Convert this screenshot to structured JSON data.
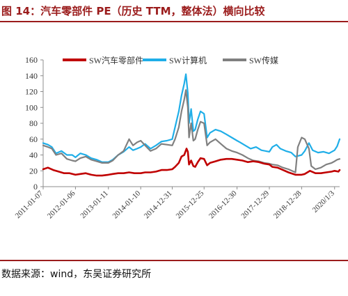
{
  "figure": {
    "title": "图 14：汽车零部件 PE（历史 TTM，整体法）横向比较",
    "source": "数据来源：wind，东吴证券研究所",
    "accent_color": "#9b1c1c"
  },
  "chart_data": {
    "type": "line",
    "title": "",
    "xlabel": "",
    "ylabel": "",
    "ylim": [
      0,
      160
    ],
    "yticks": [
      0,
      20,
      40,
      60,
      80,
      100,
      120,
      140,
      160
    ],
    "xlim": [
      "2011-01-07",
      "2020-02-29"
    ],
    "xtick_labels": [
      "2011-01-07",
      "2012-01-06",
      "2013-01-11",
      "2014-01-10",
      "2014-12-31",
      "2015-12-25",
      "2016-12-30",
      "2017-12-29",
      "2018-12-28",
      "2020/1/3"
    ],
    "grid": false,
    "legend_position": "top",
    "series": [
      {
        "name": "SW汽车零部件",
        "color": "#c00000",
        "points": [
          [
            "2011-01-07",
            22
          ],
          [
            "2011-03-01",
            24
          ],
          [
            "2011-05-01",
            21
          ],
          [
            "2011-07-01",
            19
          ],
          [
            "2011-09-01",
            17
          ],
          [
            "2011-11-01",
            17
          ],
          [
            "2012-01-06",
            15
          ],
          [
            "2012-03-01",
            16
          ],
          [
            "2012-05-01",
            17
          ],
          [
            "2012-07-01",
            15
          ],
          [
            "2012-09-01",
            14
          ],
          [
            "2012-11-01",
            14
          ],
          [
            "2013-01-11",
            15
          ],
          [
            "2013-03-01",
            16
          ],
          [
            "2013-05-01",
            17
          ],
          [
            "2013-07-01",
            17
          ],
          [
            "2013-09-01",
            18
          ],
          [
            "2013-11-01",
            17
          ],
          [
            "2014-01-10",
            17
          ],
          [
            "2014-03-01",
            18
          ],
          [
            "2014-05-01",
            18
          ],
          [
            "2014-07-01",
            19
          ],
          [
            "2014-09-01",
            21
          ],
          [
            "2014-11-01",
            21
          ],
          [
            "2014-12-31",
            22
          ],
          [
            "2015-02-01",
            25
          ],
          [
            "2015-03-15",
            30
          ],
          [
            "2015-04-15",
            38
          ],
          [
            "2015-05-15",
            40
          ],
          [
            "2015-06-10",
            48
          ],
          [
            "2015-06-25",
            44
          ],
          [
            "2015-07-08",
            28
          ],
          [
            "2015-08-01",
            33
          ],
          [
            "2015-08-26",
            26
          ],
          [
            "2015-09-15",
            25
          ],
          [
            "2015-10-15",
            31
          ],
          [
            "2015-11-15",
            36
          ],
          [
            "2015-12-25",
            35
          ],
          [
            "2016-01-28",
            27
          ],
          [
            "2016-03-01",
            30
          ],
          [
            "2016-05-01",
            32
          ],
          [
            "2016-07-01",
            34
          ],
          [
            "2016-09-01",
            35
          ],
          [
            "2016-11-01",
            35
          ],
          [
            "2016-12-30",
            34
          ],
          [
            "2017-03-01",
            33
          ],
          [
            "2017-05-01",
            31
          ],
          [
            "2017-07-01",
            32
          ],
          [
            "2017-09-01",
            31
          ],
          [
            "2017-11-01",
            29
          ],
          [
            "2017-12-29",
            28
          ],
          [
            "2018-02-01",
            25
          ],
          [
            "2018-04-01",
            24
          ],
          [
            "2018-06-01",
            21
          ],
          [
            "2018-08-01",
            18
          ],
          [
            "2018-10-19",
            15
          ],
          [
            "2018-12-28",
            15
          ],
          [
            "2019-02-01",
            16
          ],
          [
            "2019-04-01",
            20
          ],
          [
            "2019-06-01",
            17
          ],
          [
            "2019-08-01",
            17
          ],
          [
            "2019-10-01",
            18
          ],
          [
            "2019-12-01",
            19
          ],
          [
            "2020-01-03",
            20
          ],
          [
            "2020-02-15",
            19
          ],
          [
            "2020-02-29",
            21
          ]
        ]
      },
      {
        "name": "SW计算机",
        "color": "#1faee8",
        "points": [
          [
            "2011-01-07",
            55
          ],
          [
            "2011-03-01",
            53
          ],
          [
            "2011-04-15",
            50
          ],
          [
            "2011-06-01",
            42
          ],
          [
            "2011-08-01",
            45
          ],
          [
            "2011-10-01",
            40
          ],
          [
            "2011-12-01",
            40
          ],
          [
            "2012-01-06",
            37
          ],
          [
            "2012-03-01",
            42
          ],
          [
            "2012-05-01",
            40
          ],
          [
            "2012-07-01",
            36
          ],
          [
            "2012-09-01",
            34
          ],
          [
            "2012-11-01",
            31
          ],
          [
            "2013-01-11",
            31
          ],
          [
            "2013-03-01",
            34
          ],
          [
            "2013-05-01",
            40
          ],
          [
            "2013-07-01",
            44
          ],
          [
            "2013-09-01",
            50
          ],
          [
            "2013-10-15",
            46
          ],
          [
            "2013-12-01",
            48
          ],
          [
            "2014-01-10",
            50
          ],
          [
            "2014-03-01",
            54
          ],
          [
            "2014-05-01",
            48
          ],
          [
            "2014-07-01",
            52
          ],
          [
            "2014-09-01",
            57
          ],
          [
            "2014-11-01",
            58
          ],
          [
            "2014-12-31",
            60
          ],
          [
            "2015-02-01",
            75
          ],
          [
            "2015-03-15",
            95
          ],
          [
            "2015-04-15",
            115
          ],
          [
            "2015-05-15",
            130
          ],
          [
            "2015-06-03",
            142
          ],
          [
            "2015-06-25",
            118
          ],
          [
            "2015-07-08",
            80
          ],
          [
            "2015-08-01",
            98
          ],
          [
            "2015-08-26",
            70
          ],
          [
            "2015-09-15",
            72
          ],
          [
            "2015-10-15",
            85
          ],
          [
            "2015-11-15",
            95
          ],
          [
            "2015-12-25",
            92
          ],
          [
            "2016-01-28",
            62
          ],
          [
            "2016-03-01",
            68
          ],
          [
            "2016-05-01",
            72
          ],
          [
            "2016-07-01",
            70
          ],
          [
            "2016-09-01",
            66
          ],
          [
            "2016-11-01",
            62
          ],
          [
            "2016-12-30",
            58
          ],
          [
            "2017-02-01",
            56
          ],
          [
            "2017-04-01",
            52
          ],
          [
            "2017-06-01",
            48
          ],
          [
            "2017-08-01",
            50
          ],
          [
            "2017-10-01",
            46
          ],
          [
            "2017-12-29",
            44
          ],
          [
            "2018-02-01",
            50
          ],
          [
            "2018-03-20",
            53
          ],
          [
            "2018-05-01",
            48
          ],
          [
            "2018-07-01",
            45
          ],
          [
            "2018-09-01",
            43
          ],
          [
            "2018-10-19",
            38
          ],
          [
            "2018-12-28",
            40
          ],
          [
            "2019-02-01",
            45
          ],
          [
            "2019-03-20",
            55
          ],
          [
            "2019-05-01",
            46
          ],
          [
            "2019-07-01",
            43
          ],
          [
            "2019-09-01",
            44
          ],
          [
            "2019-11-01",
            42
          ],
          [
            "2020-01-03",
            46
          ],
          [
            "2020-02-01",
            51
          ],
          [
            "2020-02-29",
            60
          ]
        ]
      },
      {
        "name": "SW传媒",
        "color": "#808080",
        "points": [
          [
            "2011-01-07",
            52
          ],
          [
            "2011-03-01",
            50
          ],
          [
            "2011-04-15",
            48
          ],
          [
            "2011-06-01",
            40
          ],
          [
            "2011-08-01",
            42
          ],
          [
            "2011-10-01",
            35
          ],
          [
            "2011-12-01",
            33
          ],
          [
            "2012-01-06",
            32
          ],
          [
            "2012-03-01",
            36
          ],
          [
            "2012-05-01",
            38
          ],
          [
            "2012-07-01",
            34
          ],
          [
            "2012-09-01",
            32
          ],
          [
            "2012-11-01",
            30
          ],
          [
            "2013-01-11",
            30
          ],
          [
            "2013-03-01",
            33
          ],
          [
            "2013-05-01",
            40
          ],
          [
            "2013-07-01",
            45
          ],
          [
            "2013-09-01",
            60
          ],
          [
            "2013-10-15",
            52
          ],
          [
            "2013-12-01",
            56
          ],
          [
            "2014-01-10",
            58
          ],
          [
            "2014-03-01",
            52
          ],
          [
            "2014-05-01",
            45
          ],
          [
            "2014-07-01",
            48
          ],
          [
            "2014-09-01",
            54
          ],
          [
            "2014-11-01",
            53
          ],
          [
            "2014-12-31",
            52
          ],
          [
            "2015-02-01",
            60
          ],
          [
            "2015-03-15",
            75
          ],
          [
            "2015-04-15",
            95
          ],
          [
            "2015-05-15",
            110
          ],
          [
            "2015-06-03",
            122
          ],
          [
            "2015-06-25",
            100
          ],
          [
            "2015-07-08",
            62
          ],
          [
            "2015-08-01",
            80
          ],
          [
            "2015-08-26",
            58
          ],
          [
            "2015-09-15",
            60
          ],
          [
            "2015-10-15",
            72
          ],
          [
            "2015-11-15",
            82
          ],
          [
            "2015-12-25",
            80
          ],
          [
            "2016-01-28",
            52
          ],
          [
            "2016-03-01",
            56
          ],
          [
            "2016-05-01",
            60
          ],
          [
            "2016-07-01",
            54
          ],
          [
            "2016-09-01",
            48
          ],
          [
            "2016-11-01",
            45
          ],
          [
            "2016-12-30",
            43
          ],
          [
            "2017-03-01",
            40
          ],
          [
            "2017-05-01",
            36
          ],
          [
            "2017-07-01",
            33
          ],
          [
            "2017-09-01",
            32
          ],
          [
            "2017-11-01",
            30
          ],
          [
            "2017-12-29",
            29
          ],
          [
            "2018-02-01",
            28
          ],
          [
            "2018-04-01",
            27
          ],
          [
            "2018-06-01",
            24
          ],
          [
            "2018-08-01",
            22
          ],
          [
            "2018-10-19",
            18
          ],
          [
            "2018-11-15",
            50
          ],
          [
            "2018-12-28",
            62
          ],
          [
            "2019-02-01",
            60
          ],
          [
            "2019-03-20",
            48
          ],
          [
            "2019-04-15",
            26
          ],
          [
            "2019-06-01",
            22
          ],
          [
            "2019-08-01",
            24
          ],
          [
            "2019-10-01",
            28
          ],
          [
            "2019-12-01",
            30
          ],
          [
            "2020-01-03",
            32
          ],
          [
            "2020-02-01",
            34
          ],
          [
            "2020-02-29",
            35
          ]
        ]
      }
    ]
  }
}
